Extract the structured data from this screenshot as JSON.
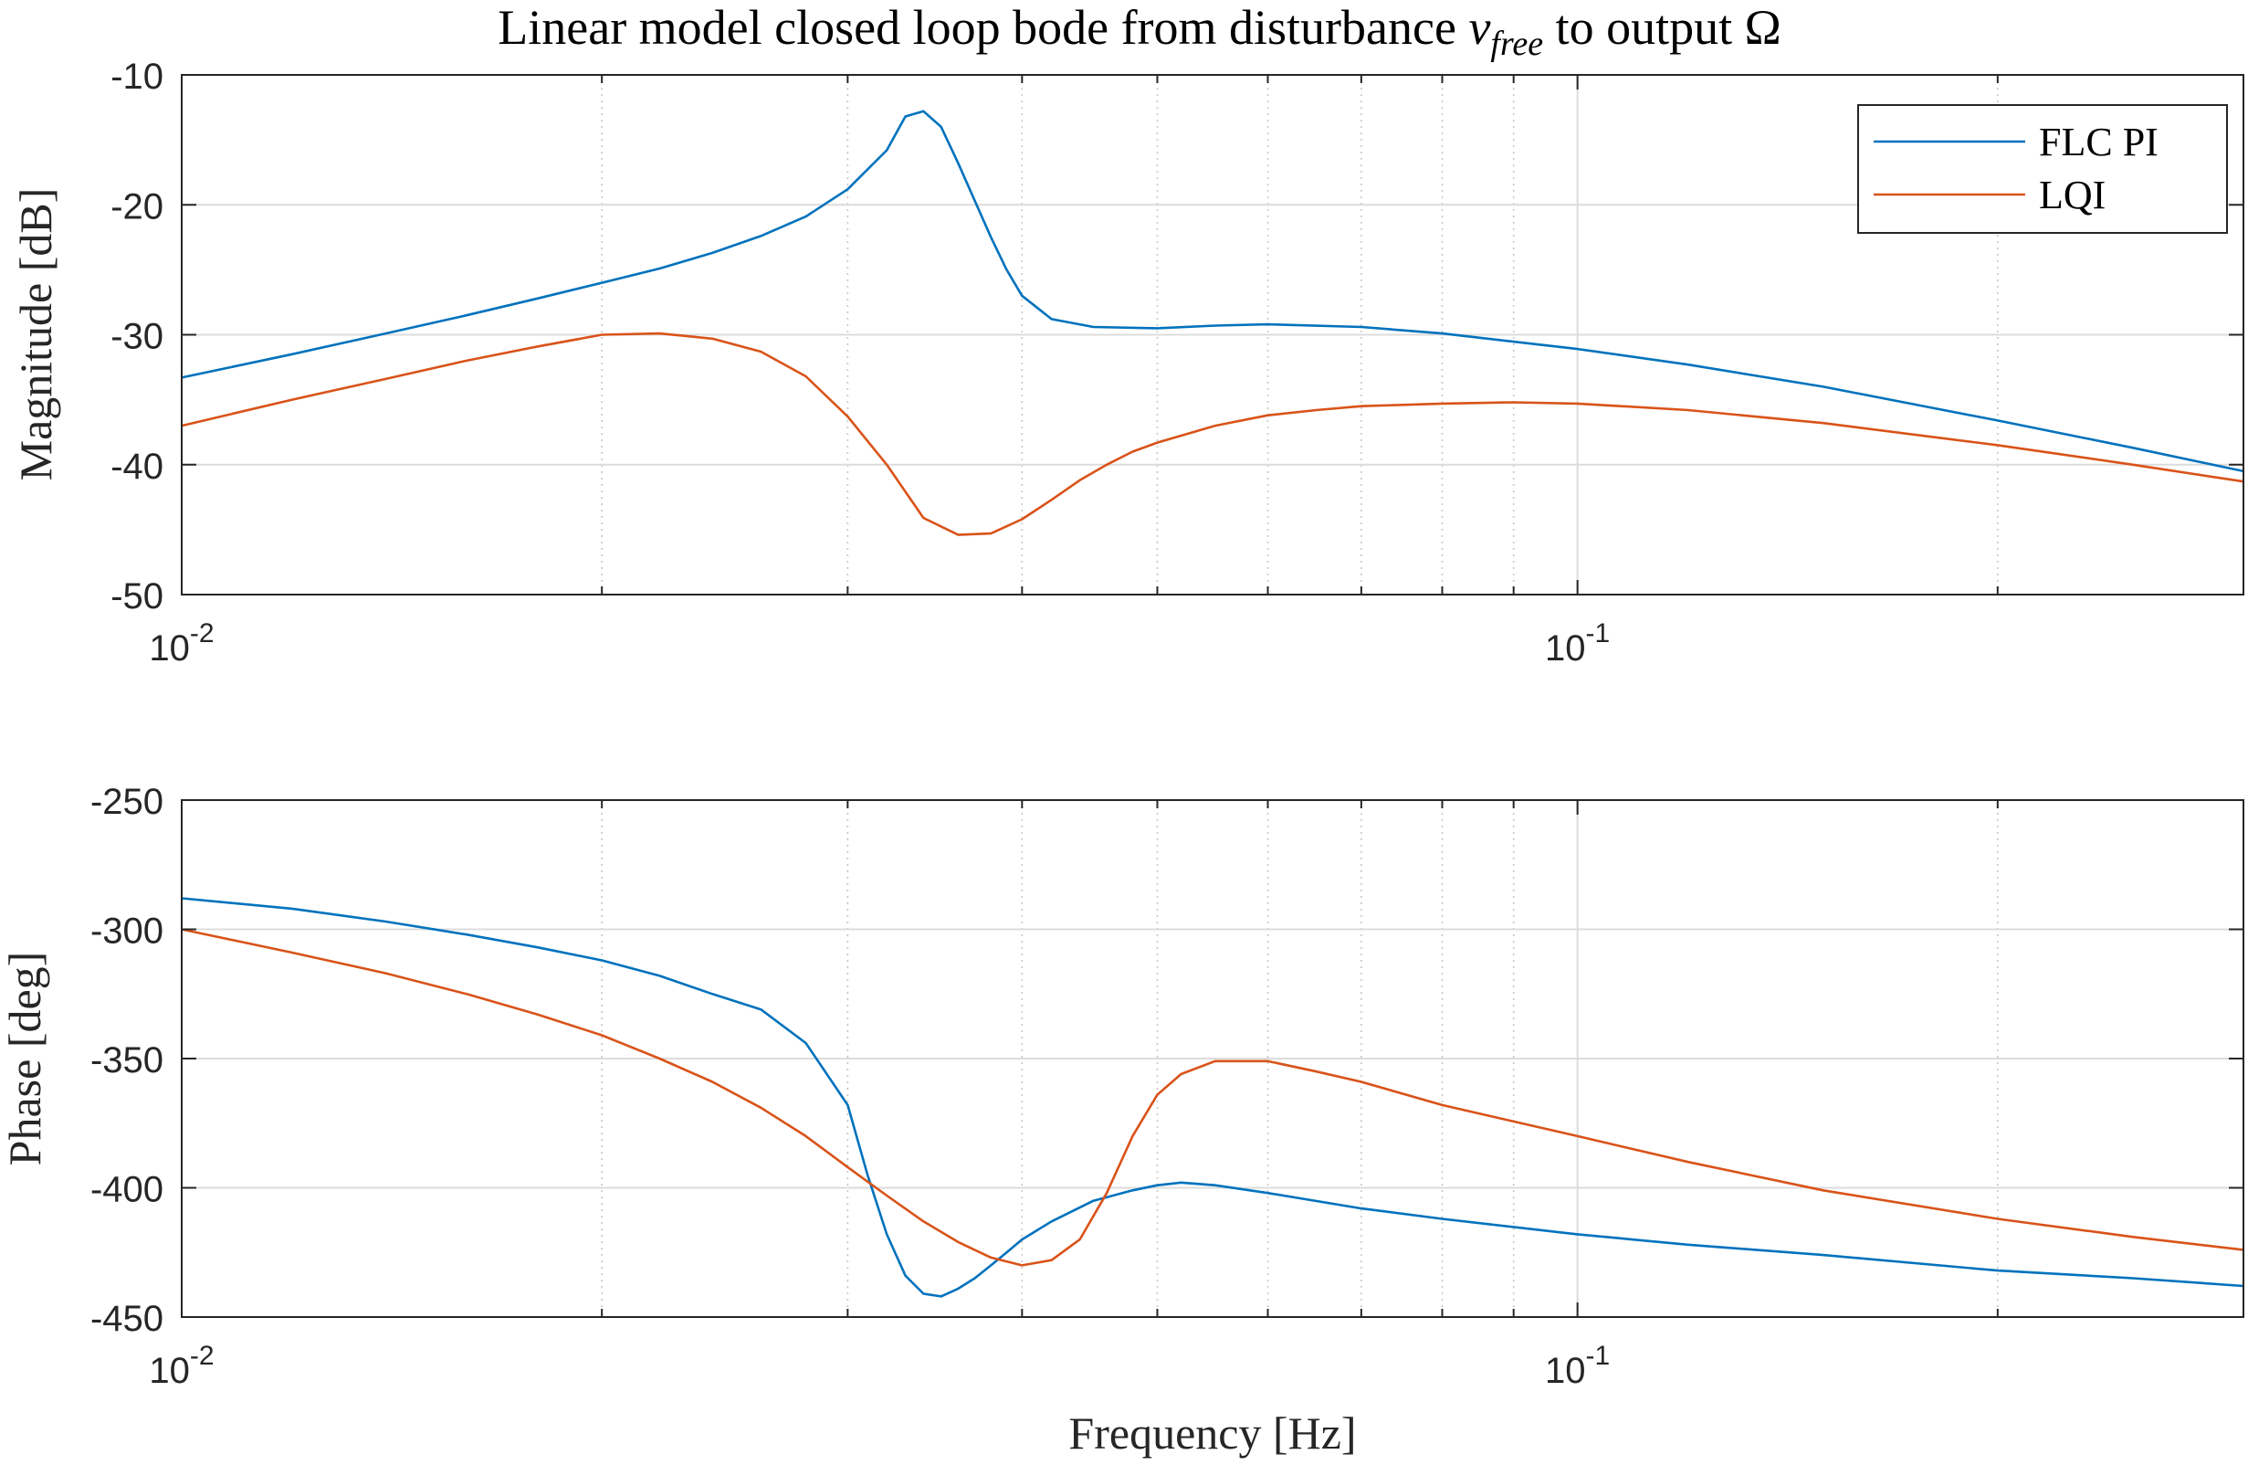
{
  "figure": {
    "title_main": "Linear model closed loop bode from disturbance ",
    "title_var": "v",
    "title_sub": "free",
    "title_tail": " to output Ω"
  },
  "colors": {
    "flc_pi": "#0072BD",
    "lqi": "#D95319",
    "grid_major": "#dcdcdc",
    "grid_minor": "#c8c8c8",
    "axis": "#262626"
  },
  "chart_data": [
    {
      "type": "line",
      "name": "magnitude",
      "ylabel": "Magnitude [dB]",
      "xlabel": "",
      "xscale": "log",
      "xlim": [
        0.01,
        0.3
      ],
      "ylim": [
        -50,
        -10
      ],
      "yticks": [
        -10,
        -20,
        -30,
        -40,
        -50
      ],
      "ytick_labels": [
        "-10",
        "-20",
        "-30",
        "-40",
        "-50"
      ],
      "xtick_labels": [
        {
          "x": 0.01,
          "base": "10",
          "exp": "-2"
        },
        {
          "x": 0.1,
          "base": "10",
          "exp": "-1"
        }
      ],
      "grid": true,
      "legend": {
        "placement": "top-right",
        "entries": [
          "FLC PI",
          "LQI"
        ]
      },
      "series": [
        {
          "name": "FLC PI",
          "color": "#0072BD",
          "x": [
            0.01,
            0.012,
            0.014,
            0.016,
            0.018,
            0.02,
            0.022,
            0.024,
            0.026,
            0.028,
            0.03,
            0.032,
            0.033,
            0.034,
            0.035,
            0.036,
            0.038,
            0.039,
            0.04,
            0.042,
            0.045,
            0.05,
            0.055,
            0.06,
            0.07,
            0.08,
            0.1,
            0.12,
            0.15,
            0.2,
            0.25,
            0.3
          ],
          "y": [
            -33.3,
            -31.5,
            -29.9,
            -28.5,
            -27.2,
            -26.0,
            -24.9,
            -23.7,
            -22.4,
            -20.9,
            -18.8,
            -15.8,
            -13.2,
            -12.8,
            -14.0,
            -16.8,
            -22.5,
            -25.0,
            -27.0,
            -28.8,
            -29.4,
            -29.5,
            -29.3,
            -29.2,
            -29.4,
            -29.9,
            -31.1,
            -32.3,
            -34.0,
            -36.6,
            -38.7,
            -40.5
          ]
        },
        {
          "name": "LQI",
          "color": "#D95319",
          "x": [
            0.01,
            0.012,
            0.014,
            0.016,
            0.018,
            0.02,
            0.022,
            0.024,
            0.026,
            0.028,
            0.03,
            0.032,
            0.034,
            0.036,
            0.038,
            0.04,
            0.042,
            0.044,
            0.046,
            0.048,
            0.05,
            0.055,
            0.06,
            0.065,
            0.07,
            0.08,
            0.09,
            0.1,
            0.12,
            0.15,
            0.2,
            0.25,
            0.3
          ],
          "y": [
            -37.0,
            -35.0,
            -33.4,
            -32.0,
            -30.9,
            -30.0,
            -29.9,
            -30.3,
            -31.3,
            -33.2,
            -36.3,
            -40.0,
            -44.1,
            -45.4,
            -45.3,
            -44.2,
            -42.7,
            -41.2,
            -40.0,
            -39.0,
            -38.3,
            -37.0,
            -36.2,
            -35.8,
            -35.5,
            -35.3,
            -35.2,
            -35.3,
            -35.8,
            -36.8,
            -38.5,
            -40.0,
            -41.3
          ]
        }
      ]
    },
    {
      "type": "line",
      "name": "phase",
      "ylabel": "Phase [deg]",
      "xlabel": "Frequency [Hz]",
      "xscale": "log",
      "xlim": [
        0.01,
        0.3
      ],
      "ylim": [
        -450,
        -250
      ],
      "yticks": [
        -250,
        -300,
        -350,
        -400,
        -450
      ],
      "ytick_labels": [
        "-250",
        "-300",
        "-350",
        "-400",
        "-450"
      ],
      "xtick_labels": [
        {
          "x": 0.01,
          "base": "10",
          "exp": "-2"
        },
        {
          "x": 0.1,
          "base": "10",
          "exp": "-1"
        }
      ],
      "grid": true,
      "series": [
        {
          "name": "FLC PI",
          "color": "#0072BD",
          "x": [
            0.01,
            0.012,
            0.014,
            0.016,
            0.018,
            0.02,
            0.022,
            0.024,
            0.026,
            0.028,
            0.03,
            0.031,
            0.032,
            0.033,
            0.034,
            0.035,
            0.036,
            0.037,
            0.038,
            0.039,
            0.04,
            0.042,
            0.045,
            0.048,
            0.05,
            0.052,
            0.055,
            0.06,
            0.07,
            0.08,
            0.1,
            0.12,
            0.15,
            0.2,
            0.25,
            0.3
          ],
          "y": [
            -288,
            -292,
            -297,
            -302,
            -307,
            -312,
            -318,
            -325,
            -331,
            -344,
            -368,
            -395,
            -418,
            -434,
            -441,
            -442,
            -439,
            -435,
            -430,
            -425,
            -420,
            -413,
            -405,
            -401,
            -399,
            -398,
            -399,
            -402,
            -408,
            -412,
            -418,
            -422,
            -426,
            -432,
            -435,
            -438
          ]
        },
        {
          "name": "LQI",
          "color": "#D95319",
          "x": [
            0.01,
            0.012,
            0.014,
            0.016,
            0.018,
            0.02,
            0.022,
            0.024,
            0.026,
            0.028,
            0.03,
            0.032,
            0.034,
            0.036,
            0.038,
            0.04,
            0.042,
            0.044,
            0.046,
            0.048,
            0.05,
            0.052,
            0.055,
            0.06,
            0.065,
            0.07,
            0.08,
            0.1,
            0.12,
            0.15,
            0.2,
            0.25,
            0.3
          ],
          "y": [
            -300,
            -309,
            -317,
            -325,
            -333,
            -341,
            -350,
            -359,
            -369,
            -380,
            -392,
            -403,
            -413,
            -421,
            -427,
            -430,
            -428,
            -420,
            -402,
            -380,
            -364,
            -356,
            -351,
            -351,
            -355,
            -359,
            -368,
            -380,
            -390,
            -401,
            -412,
            -419,
            -424
          ]
        }
      ]
    }
  ]
}
